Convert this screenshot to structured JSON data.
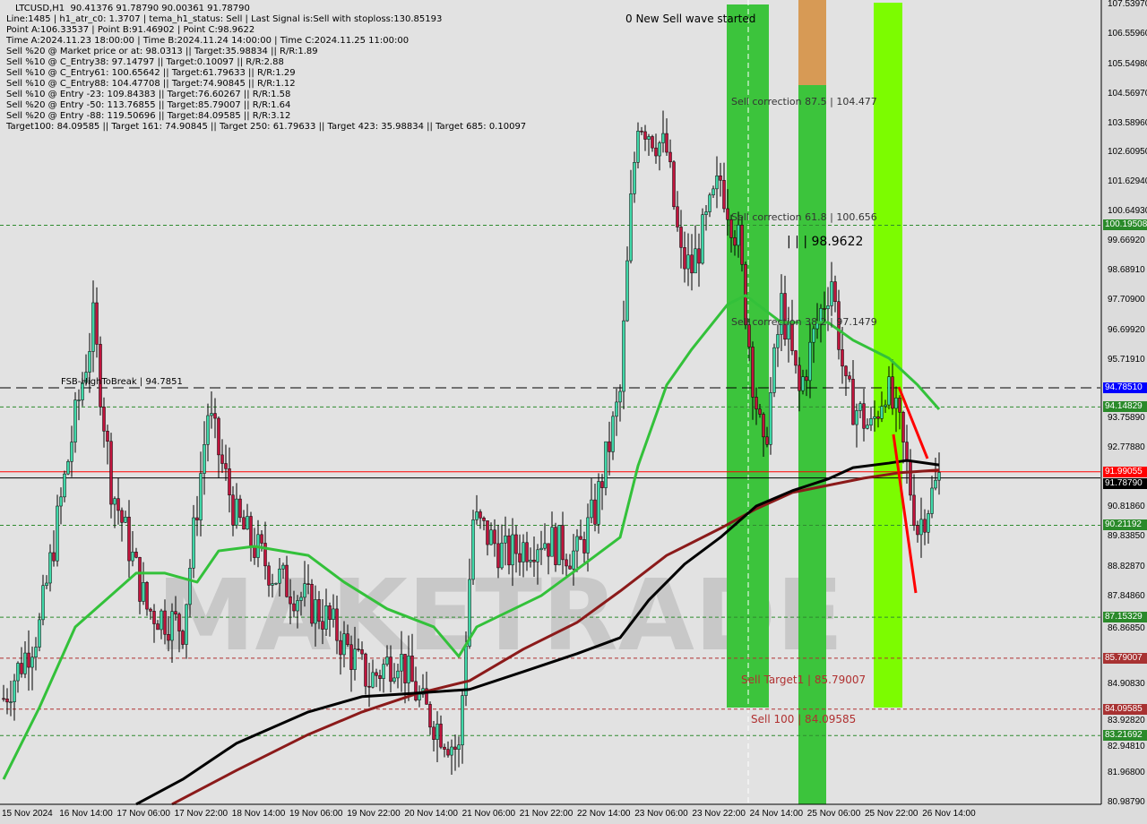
{
  "header": {
    "title": "LTCUSD,H1  90.41376 91.78790 90.00361 91.78790",
    "lines": [
      "Line:1485 | h1_atr_c0: 1.3707 | tema_h1_status: Sell | Last Signal is:Sell with stoploss:130.85193",
      "Point A:106.33537 | Point B:91.46902 | Point C:98.9622",
      "Time A:2024.11.23 18:00:00 | Time B:2024.11.24 14:00:00 | Time C:2024.11.25 11:00:00",
      "Sell %20 @ Market price or at: 98.0313 || Target:35.98834 || R/R:1.89",
      "Sell %10 @ C_Entry38: 97.14797 || Target:0.10097 || R/R:2.88",
      "Sell %10 @ C_Entry61: 100.65642 || Target:61.79633 || R/R:1.29",
      "Sell %10 @ C_Entry88: 104.47708 || Target:74.90845 || R/R:1.12",
      "Sell %10 @ Entry -23: 109.84383 || Target:76.60267 || R/R:1.58",
      "Sell %20 @ Entry -50: 113.76855 || Target:85.79007 || R/R:1.64",
      "Sell %20 @ Entry -88: 119.50696 || Target:84.09585 || R/R:3.12",
      "Target100: 84.09585 || Target 161: 74.90845 || Target 250: 61.79633 || Target 423: 35.98834 || Target 685: 0.10097"
    ]
  },
  "annotations": {
    "wave": "0 New Sell wave started",
    "corr875": "Sell correction 87.5 | 104.477",
    "corr618": "Sell correction 61.8 | 100.656",
    "corr382": "Sell correction 38.2 | 97.1479",
    "pointc": "| | | 98.9622",
    "fsb": "FSB-HighToBreak | 94.7851",
    "target1": "Sell Target1 | 85.79007",
    "sell100": "Sell 100 | 84.09585",
    "watermark": "MAKETRADE"
  },
  "chart_data": {
    "type": "candlestick",
    "symbol": "LTCUSD",
    "timeframe": "H1",
    "ylim": [
      80.9879,
      107.5397
    ],
    "y_ticks": [
      "107.53970",
      "106.55960",
      "105.54980",
      "104.56970",
      "103.58960",
      "102.60950",
      "101.62940",
      "100.64930",
      "99.66920",
      "98.68910",
      "97.70900",
      "96.69920",
      "95.71910",
      "93.75890",
      "92.77880",
      "90.81860",
      "89.83850",
      "88.82870",
      "87.84860",
      "86.86850",
      "84.90830",
      "83.92820",
      "82.94810",
      "81.96800",
      "80.98790"
    ],
    "x_ticks": [
      "15 Nov 2024",
      "16 Nov 14:00",
      "17 Nov 06:00",
      "17 Nov 22:00",
      "18 Nov 14:00",
      "19 Nov 06:00",
      "19 Nov 22:00",
      "20 Nov 14:00",
      "21 Nov 06:00",
      "21 Nov 22:00",
      "22 Nov 14:00",
      "23 Nov 06:00",
      "23 Nov 22:00",
      "24 Nov 14:00",
      "25 Nov 06:00",
      "25 Nov 22:00",
      "26 Nov 14:00"
    ],
    "price_path": [
      [
        0,
        84.45
      ],
      [
        10,
        86.83
      ],
      [
        19,
        93.1
      ],
      [
        25,
        96.96
      ],
      [
        30,
        91.6
      ],
      [
        40,
        87.43
      ],
      [
        50,
        86.83
      ],
      [
        57,
        93.98
      ],
      [
        65,
        90.4
      ],
      [
        75,
        88.62
      ],
      [
        90,
        87.13
      ],
      [
        102,
        85.04
      ],
      [
        110,
        85.94
      ],
      [
        117,
        84.15
      ],
      [
        127,
        82.66
      ],
      [
        131,
        90.4
      ],
      [
        140,
        89.21
      ],
      [
        150,
        89.81
      ],
      [
        160,
        89.21
      ],
      [
        165,
        90.7
      ],
      [
        172,
        94.58
      ],
      [
        175,
        100.84
      ],
      [
        177,
        103.82
      ],
      [
        185,
        102.62
      ],
      [
        189,
        99.05
      ],
      [
        192,
        98.75
      ],
      [
        200,
        101.73
      ],
      [
        205,
        99.64
      ],
      [
        209,
        95.17
      ],
      [
        212,
        92.49
      ],
      [
        217,
        97.56
      ],
      [
        222,
        94.58
      ],
      [
        227,
        96.96
      ],
      [
        231,
        98.45
      ],
      [
        235,
        94.58
      ],
      [
        242,
        93.39
      ],
      [
        246,
        94.88
      ],
      [
        250,
        93.39
      ],
      [
        255,
        90.11
      ],
      [
        261,
        91.79
      ]
    ],
    "series": [
      {
        "color": "#33c13a",
        "points": [
          [
            0,
            81.76
          ],
          [
            10,
            84.15
          ],
          [
            20,
            86.83
          ],
          [
            37,
            88.62
          ],
          [
            45,
            88.62
          ],
          [
            54,
            88.32
          ],
          [
            60,
            89.36
          ],
          [
            70,
            89.51
          ],
          [
            85,
            89.21
          ],
          [
            95,
            88.32
          ],
          [
            107,
            87.43
          ],
          [
            120,
            86.83
          ],
          [
            127,
            85.85
          ],
          [
            132,
            86.83
          ],
          [
            150,
            87.87
          ],
          [
            162,
            88.92
          ],
          [
            172,
            89.81
          ],
          [
            177,
            92.19
          ],
          [
            185,
            94.88
          ],
          [
            192,
            96.07
          ],
          [
            202,
            97.56
          ],
          [
            207,
            97.86
          ],
          [
            217,
            96.96
          ],
          [
            230,
            96.96
          ],
          [
            237,
            96.37
          ],
          [
            247,
            95.77
          ],
          [
            255,
            94.88
          ],
          [
            261,
            94.07
          ]
        ]
      },
      {
        "color": "#8b1a1a",
        "points": [
          [
            47,
            80.93
          ],
          [
            65,
            82.06
          ],
          [
            85,
            83.25
          ],
          [
            100,
            84.0
          ],
          [
            115,
            84.6
          ],
          [
            130,
            85.04
          ],
          [
            145,
            86.09
          ],
          [
            160,
            86.98
          ],
          [
            172,
            88.02
          ],
          [
            185,
            89.21
          ],
          [
            200,
            90.11
          ],
          [
            210,
            90.76
          ],
          [
            220,
            91.3
          ],
          [
            230,
            91.54
          ],
          [
            240,
            91.78
          ],
          [
            250,
            91.96
          ],
          [
            261,
            92.05
          ]
        ]
      },
      {
        "color": "#000000",
        "points": [
          [
            37,
            80.93
          ],
          [
            50,
            81.76
          ],
          [
            65,
            82.96
          ],
          [
            85,
            84.0
          ],
          [
            100,
            84.51
          ],
          [
            112,
            84.6
          ],
          [
            130,
            84.75
          ],
          [
            145,
            85.34
          ],
          [
            160,
            85.94
          ],
          [
            172,
            86.47
          ],
          [
            180,
            87.72
          ],
          [
            190,
            88.92
          ],
          [
            200,
            89.81
          ],
          [
            210,
            90.85
          ],
          [
            220,
            91.36
          ],
          [
            230,
            91.75
          ],
          [
            237,
            92.13
          ],
          [
            247,
            92.28
          ],
          [
            252,
            92.37
          ],
          [
            261,
            92.22
          ]
        ]
      }
    ],
    "levels": [
      {
        "value": "100.19508",
        "color": "#2e8b2e",
        "style": "dotted"
      },
      {
        "value": "94.78510",
        "color": "#0000ff",
        "style": "dashed"
      },
      {
        "value": "94.14829",
        "color": "#2e8b2e",
        "style": "dotted"
      },
      {
        "value": "91.99055",
        "color": "#ff0000",
        "style": "solid"
      },
      {
        "value": "91.78790",
        "color": "#000000",
        "style": "solid"
      },
      {
        "value": "90.21192",
        "color": "#2e8b2e",
        "style": "dotted"
      },
      {
        "value": "87.15329",
        "color": "#2e8b2e",
        "style": "dotted"
      },
      {
        "value": "85.79007",
        "color": "#b03030",
        "style": "dotted"
      },
      {
        "value": "84.09585",
        "color": "#b03030",
        "style": "dotted"
      },
      {
        "value": "83.21692",
        "color": "#2e8b2e",
        "style": "dotted"
      }
    ],
    "colors": {
      "bull": "#3fd8a8",
      "bear": "#c0143c",
      "band_green": "#3cc43c",
      "band_lime": "#7cfc00",
      "band_orange": "#d79a55"
    }
  }
}
